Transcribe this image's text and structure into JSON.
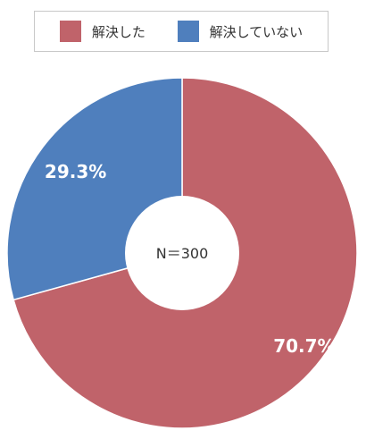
{
  "chart_data": {
    "type": "pie",
    "donut": true,
    "legend_position": "top",
    "center_text": "N＝300",
    "slices": [
      {
        "name": "解決した",
        "value": 70.7,
        "label": "70.7%",
        "color": "#c0636a"
      },
      {
        "name": "解決していない",
        "value": 29.3,
        "label": "29.3%",
        "color": "#4f7fbd"
      }
    ]
  }
}
